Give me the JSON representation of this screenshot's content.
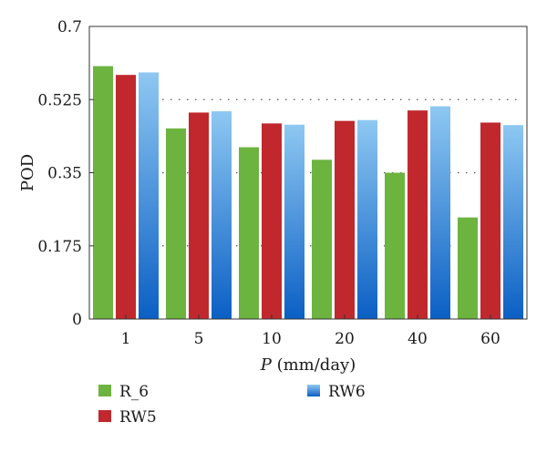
{
  "chart_data": {
    "type": "bar",
    "categories": [
      "1",
      "5",
      "10",
      "20",
      "40",
      "60"
    ],
    "series": [
      {
        "name": "R_6",
        "values": [
          0.605,
          0.456,
          0.411,
          0.381,
          0.35,
          0.243
        ],
        "color": "#6cb33f"
      },
      {
        "name": "RW5",
        "values": [
          0.584,
          0.494,
          0.468,
          0.474,
          0.499,
          0.47
        ],
        "color": "#c0282d"
      },
      {
        "name": "RW6",
        "values": [
          0.59,
          0.497,
          0.465,
          0.476,
          0.509,
          0.464
        ],
        "color_top": "#8ec8f2",
        "color_bottom": "#0b5fc4"
      }
    ],
    "xlabel_var": "P",
    "xlabel_unit": " (mm/day)",
    "ylabel": "POD",
    "ylim": [
      0,
      0.7
    ],
    "yticks": [
      "0",
      "0.175",
      "0.35",
      "0.525",
      "0.7"
    ],
    "grid": "horizontal dotted",
    "legend": "bottom"
  }
}
